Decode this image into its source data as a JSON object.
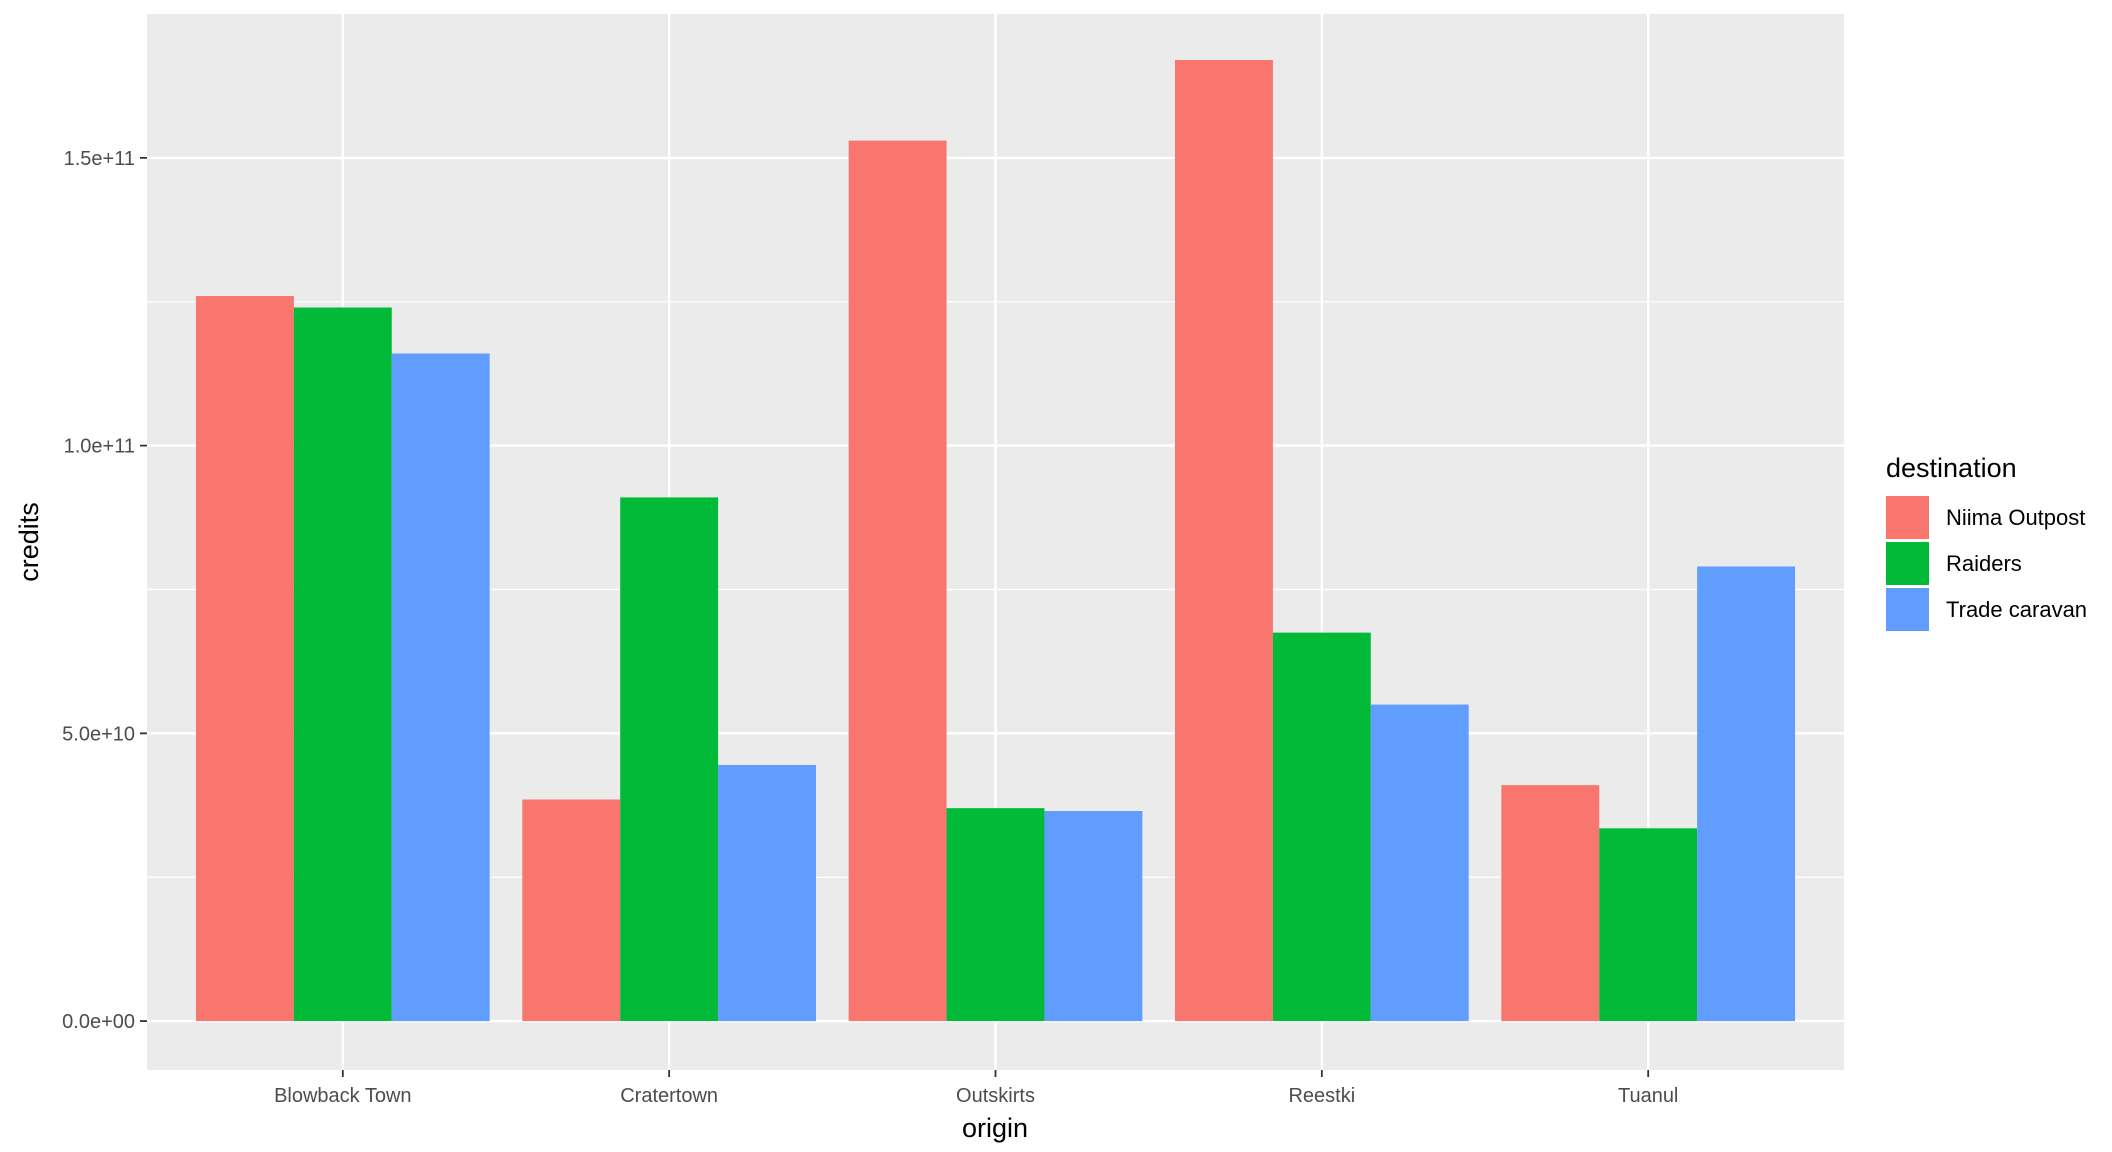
{
  "chart_data": {
    "type": "bar",
    "title": "",
    "xlabel": "origin",
    "ylabel": "credits",
    "categories": [
      "Blowback Town",
      "Cratertown",
      "Outskirts",
      "Reestki",
      "Tuanul"
    ],
    "series": [
      {
        "name": "Niima Outpost",
        "color": "#F8766D",
        "values": [
          126000000000,
          38500000000,
          153000000000,
          167000000000,
          41000000000
        ]
      },
      {
        "name": "Raiders",
        "color": "#00BA38",
        "values": [
          124000000000,
          91000000000,
          37000000000,
          67500000000,
          33500000000
        ]
      },
      {
        "name": "Trade caravan",
        "color": "#619CFF",
        "values": [
          116000000000,
          44500000000,
          36500000000,
          55000000000,
          79000000000
        ]
      }
    ],
    "ylim": [
      -8500000000,
      175000000000
    ],
    "yticks": [
      0,
      50000000000,
      100000000000,
      150000000000
    ],
    "ytick_labels": [
      "0.0e+00",
      "5.0e+10",
      "1.0e+11",
      "1.5e+11"
    ],
    "grid": true,
    "legend": {
      "title": "destination",
      "position": "right"
    },
    "panel_background": "#EBEBEB",
    "grid_color": "#FFFFFF"
  }
}
